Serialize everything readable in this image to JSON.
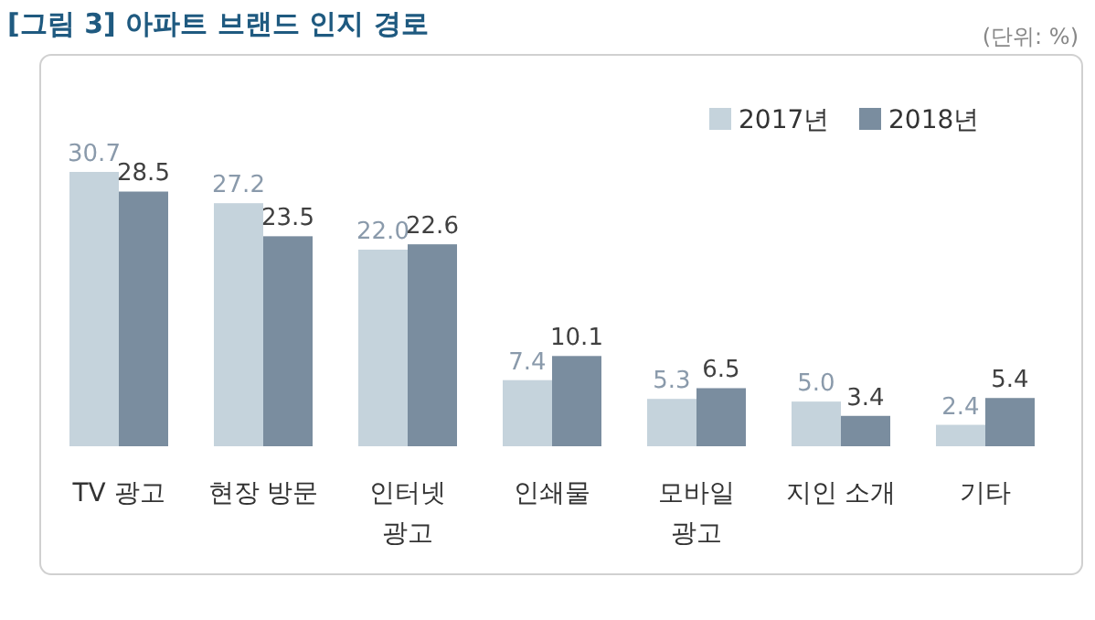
{
  "chart_data": {
    "type": "bar",
    "title": "[그림 3] 아파트 브랜드 인지 경로",
    "subtitle": "(단위: %)",
    "categories": [
      "TV 광고",
      "현장 방문",
      "인터넷\n광고",
      "인쇄물",
      "모바일\n광고",
      "지인 소개",
      "기타"
    ],
    "series": [
      {
        "name": "2017년",
        "color": "#c5d3dc",
        "values": [
          30.7,
          27.2,
          22.0,
          7.4,
          5.3,
          5.0,
          2.4
        ],
        "value_labels": [
          "30.7",
          "27.2",
          "22.0",
          "7.4",
          "5.3",
          "5.0",
          "2.4"
        ]
      },
      {
        "name": "2018년",
        "color": "#7a8d9f",
        "values": [
          28.5,
          23.5,
          22.6,
          10.1,
          6.5,
          3.4,
          5.4
        ],
        "value_labels": [
          "28.5",
          "23.5",
          "22.6",
          "10.1",
          "6.5",
          "3.4",
          "5.4"
        ]
      }
    ],
    "data_labels": true,
    "legend": "top right"
  }
}
